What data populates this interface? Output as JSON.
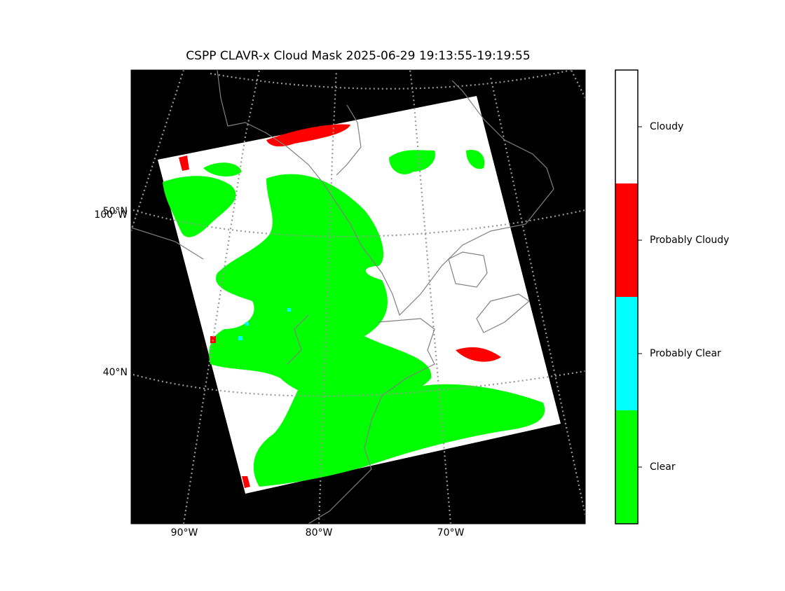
{
  "title": "CSPP CLAVR-x Cloud Mask 2025-06-29 19:13:55-19:19:55",
  "map": {
    "lat_labels": [
      "50°N",
      "40°N"
    ],
    "lon_labels": [
      "90°W",
      "80°W",
      "70°W"
    ],
    "edge_lon_label": "100°W"
  },
  "colorbar": {
    "categories": [
      {
        "label": "Cloudy",
        "color": "#ffffff"
      },
      {
        "label": "Probably Cloudy",
        "color": "#ff0000"
      },
      {
        "label": "Probably Clear",
        "color": "#00ffff"
      },
      {
        "label": "Clear",
        "color": "#00ff00"
      }
    ]
  }
}
